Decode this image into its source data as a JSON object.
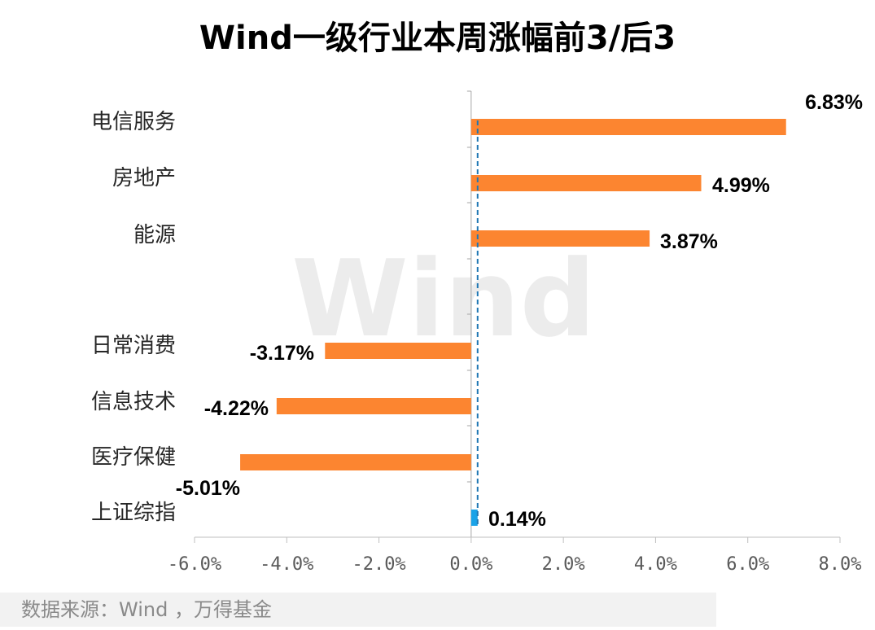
{
  "chart_data": {
    "type": "bar",
    "orientation": "horizontal",
    "title": "Wind一级行业本周涨幅前3/后3",
    "categories": [
      "电信服务",
      "房地产",
      "能源",
      "日常消费",
      "信息技术",
      "医疗保健",
      "上证综指"
    ],
    "values": [
      6.83,
      4.99,
      3.87,
      -3.17,
      -4.22,
      -5.01,
      0.14
    ],
    "value_labels": [
      "6.83%",
      "4.99%",
      "3.87%",
      "-3.17%",
      "-4.22%",
      "-5.01%",
      "0.14%"
    ],
    "colors": [
      "#fc8530",
      "#fc8530",
      "#fc8530",
      "#fc8530",
      "#fc8530",
      "#fc8530",
      "#1aa3e8"
    ],
    "xlim": [
      -6,
      8
    ],
    "xticks": [
      -6,
      -4,
      -2,
      0,
      2,
      4,
      6,
      8
    ],
    "xtick_labels": [
      "-6.0%",
      "-4.0%",
      "-2.0%",
      "0.0%",
      "2.0%",
      "4.0%",
      "6.0%",
      "8.0%"
    ],
    "reference_line_value": 0.14,
    "reference_line_color": "#1f77b4",
    "grid": false,
    "legend": "none"
  },
  "watermark": "Wind",
  "source_note": "数据来源：Wind ，万得基金"
}
